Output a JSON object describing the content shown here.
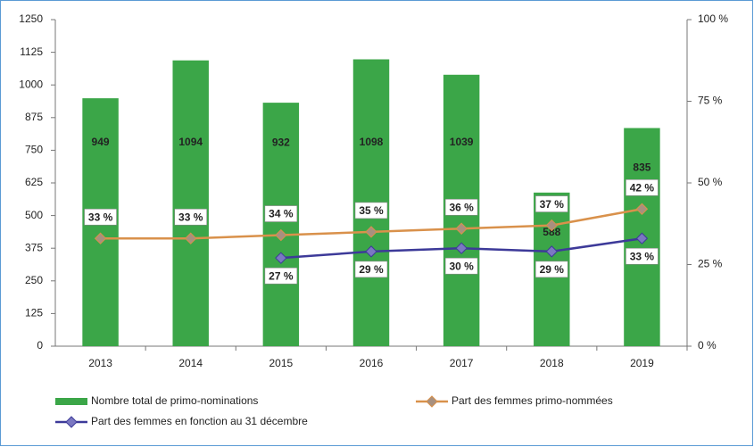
{
  "chart_data": {
    "type": "bar",
    "categories": [
      "2013",
      "2014",
      "2015",
      "2016",
      "2017",
      "2018",
      "2019"
    ],
    "series": [
      {
        "name": "Nombre total de primo-nominations",
        "type": "bar",
        "color": "#3ba648",
        "values": [
          949,
          1094,
          932,
          1098,
          1039,
          588,
          835
        ]
      },
      {
        "name": "Part des femmes primo-nommées",
        "type": "line",
        "axis": "y2",
        "color": "#d9914b",
        "marker_color": "#a8907f",
        "values": [
          33,
          33,
          34,
          35,
          36,
          37,
          42
        ],
        "value_labels": [
          "33 %",
          "33 %",
          "34 %",
          "35 %",
          "36 %",
          "37 %",
          "42 %"
        ]
      },
      {
        "name": "Part des femmes en fonction au 31 décembre",
        "type": "line",
        "axis": "y2",
        "color": "#3d3a99",
        "marker_color": "#7b78c2",
        "values": [
          null,
          null,
          27,
          29,
          30,
          29,
          33
        ],
        "value_labels": [
          null,
          null,
          "27 %",
          "29 %",
          "30 %",
          "29 %",
          "33 %"
        ]
      }
    ],
    "ylim": [
      0,
      1250
    ],
    "yticks": [
      0,
      125,
      250,
      375,
      500,
      625,
      750,
      875,
      1000,
      1125,
      1250
    ],
    "y2lim": [
      0,
      100
    ],
    "y2ticks": [
      {
        "value": 0,
        "label": "0 %"
      },
      {
        "value": 25,
        "label": "25 %"
      },
      {
        "value": 50,
        "label": "50 %"
      },
      {
        "value": 75,
        "label": "75 %"
      },
      {
        "value": 100,
        "label": "100 %"
      }
    ],
    "grid": false
  }
}
